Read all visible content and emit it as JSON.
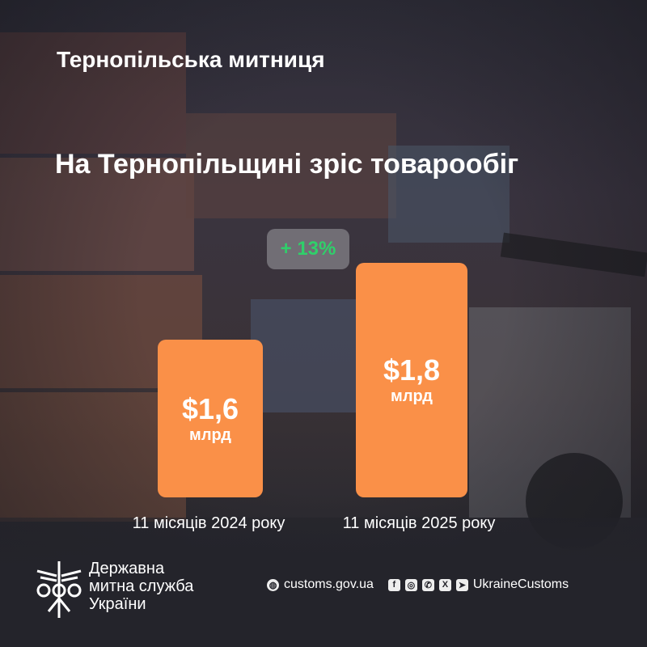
{
  "header": {
    "organization": "Тернопільська митниця",
    "headline": "На Тернопільщині зріс товарообіг"
  },
  "chart_data": {
    "type": "bar",
    "categories": [
      "11 місяців 2024 року",
      "11 місяців 2025 року"
    ],
    "values": [
      1.6,
      1.8
    ],
    "value_labels": [
      "$1,6",
      "$1,8"
    ],
    "unit_label": "млрд",
    "change_label": "+ 13%",
    "bar_color": "#fa9048",
    "change_color": "#2fd06a"
  },
  "footer": {
    "agency_lines": [
      "Державна",
      "митна служба",
      "України"
    ],
    "website": "customs.gov.ua",
    "social_handle": "UkraineCustoms",
    "social_icons": [
      "facebook-icon",
      "instagram-icon",
      "whatsapp-icon",
      "x-icon",
      "telegram-icon"
    ]
  }
}
